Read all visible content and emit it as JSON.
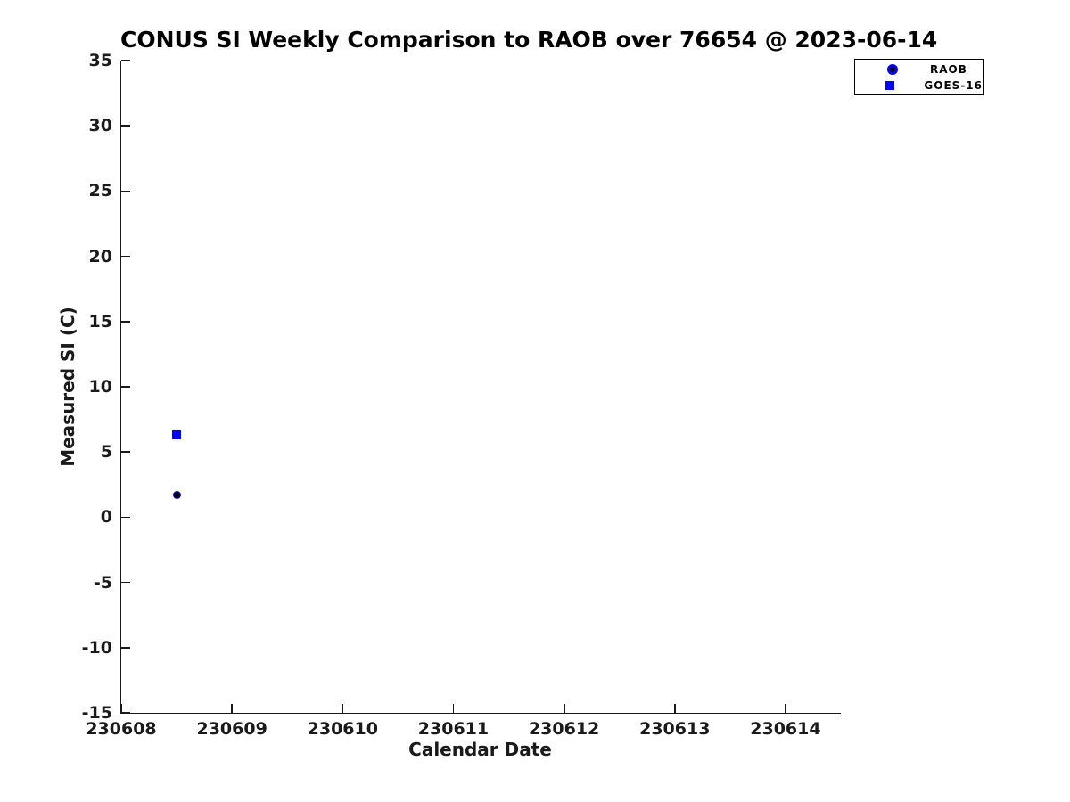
{
  "chart_data": {
    "type": "scatter",
    "title": "CONUS SI Weekly Comparison to RAOB over 76654 @ 2023-06-14",
    "xlabel": "Calendar Date",
    "ylabel": "Measured SI (C)",
    "xlim": [
      230608,
      230614.5
    ],
    "ylim": [
      -15,
      35
    ],
    "grid": false,
    "legend_position": "top-right-outside",
    "x_ticks": [
      {
        "value": 230608,
        "label": "230608"
      },
      {
        "value": 230609,
        "label": "230609"
      },
      {
        "value": 230610,
        "label": "230610"
      },
      {
        "value": 230611,
        "label": "230611"
      },
      {
        "value": 230612,
        "label": "230612"
      },
      {
        "value": 230613,
        "label": "230613"
      },
      {
        "value": 230614,
        "label": "230614"
      }
    ],
    "y_ticks": [
      {
        "value": -15,
        "label": "-15"
      },
      {
        "value": -10,
        "label": "-10"
      },
      {
        "value": -5,
        "label": "-5"
      },
      {
        "value": 0,
        "label": "0"
      },
      {
        "value": 5,
        "label": "5"
      },
      {
        "value": 10,
        "label": "10"
      },
      {
        "value": 15,
        "label": "15"
      },
      {
        "value": 20,
        "label": "20"
      },
      {
        "value": 25,
        "label": "25"
      },
      {
        "value": 30,
        "label": "30"
      },
      {
        "value": 35,
        "label": "35"
      }
    ],
    "series": [
      {
        "name": "RAOB",
        "marker": "circle",
        "edge_color": "#0000FF",
        "face_color": "#000000",
        "points": [
          {
            "x": 230608.5,
            "y": 1.7
          }
        ]
      },
      {
        "name": "GOES-16",
        "marker": "square",
        "edge_color": "#0000FF",
        "face_color": "#0000FF",
        "points": [
          {
            "x": 230608.5,
            "y": 6.3
          }
        ]
      }
    ]
  },
  "colors": {
    "marker_blue": "#0000FF",
    "marker_black": "#000000",
    "axis_text": "#1a1a1a",
    "background": "#ffffff"
  }
}
